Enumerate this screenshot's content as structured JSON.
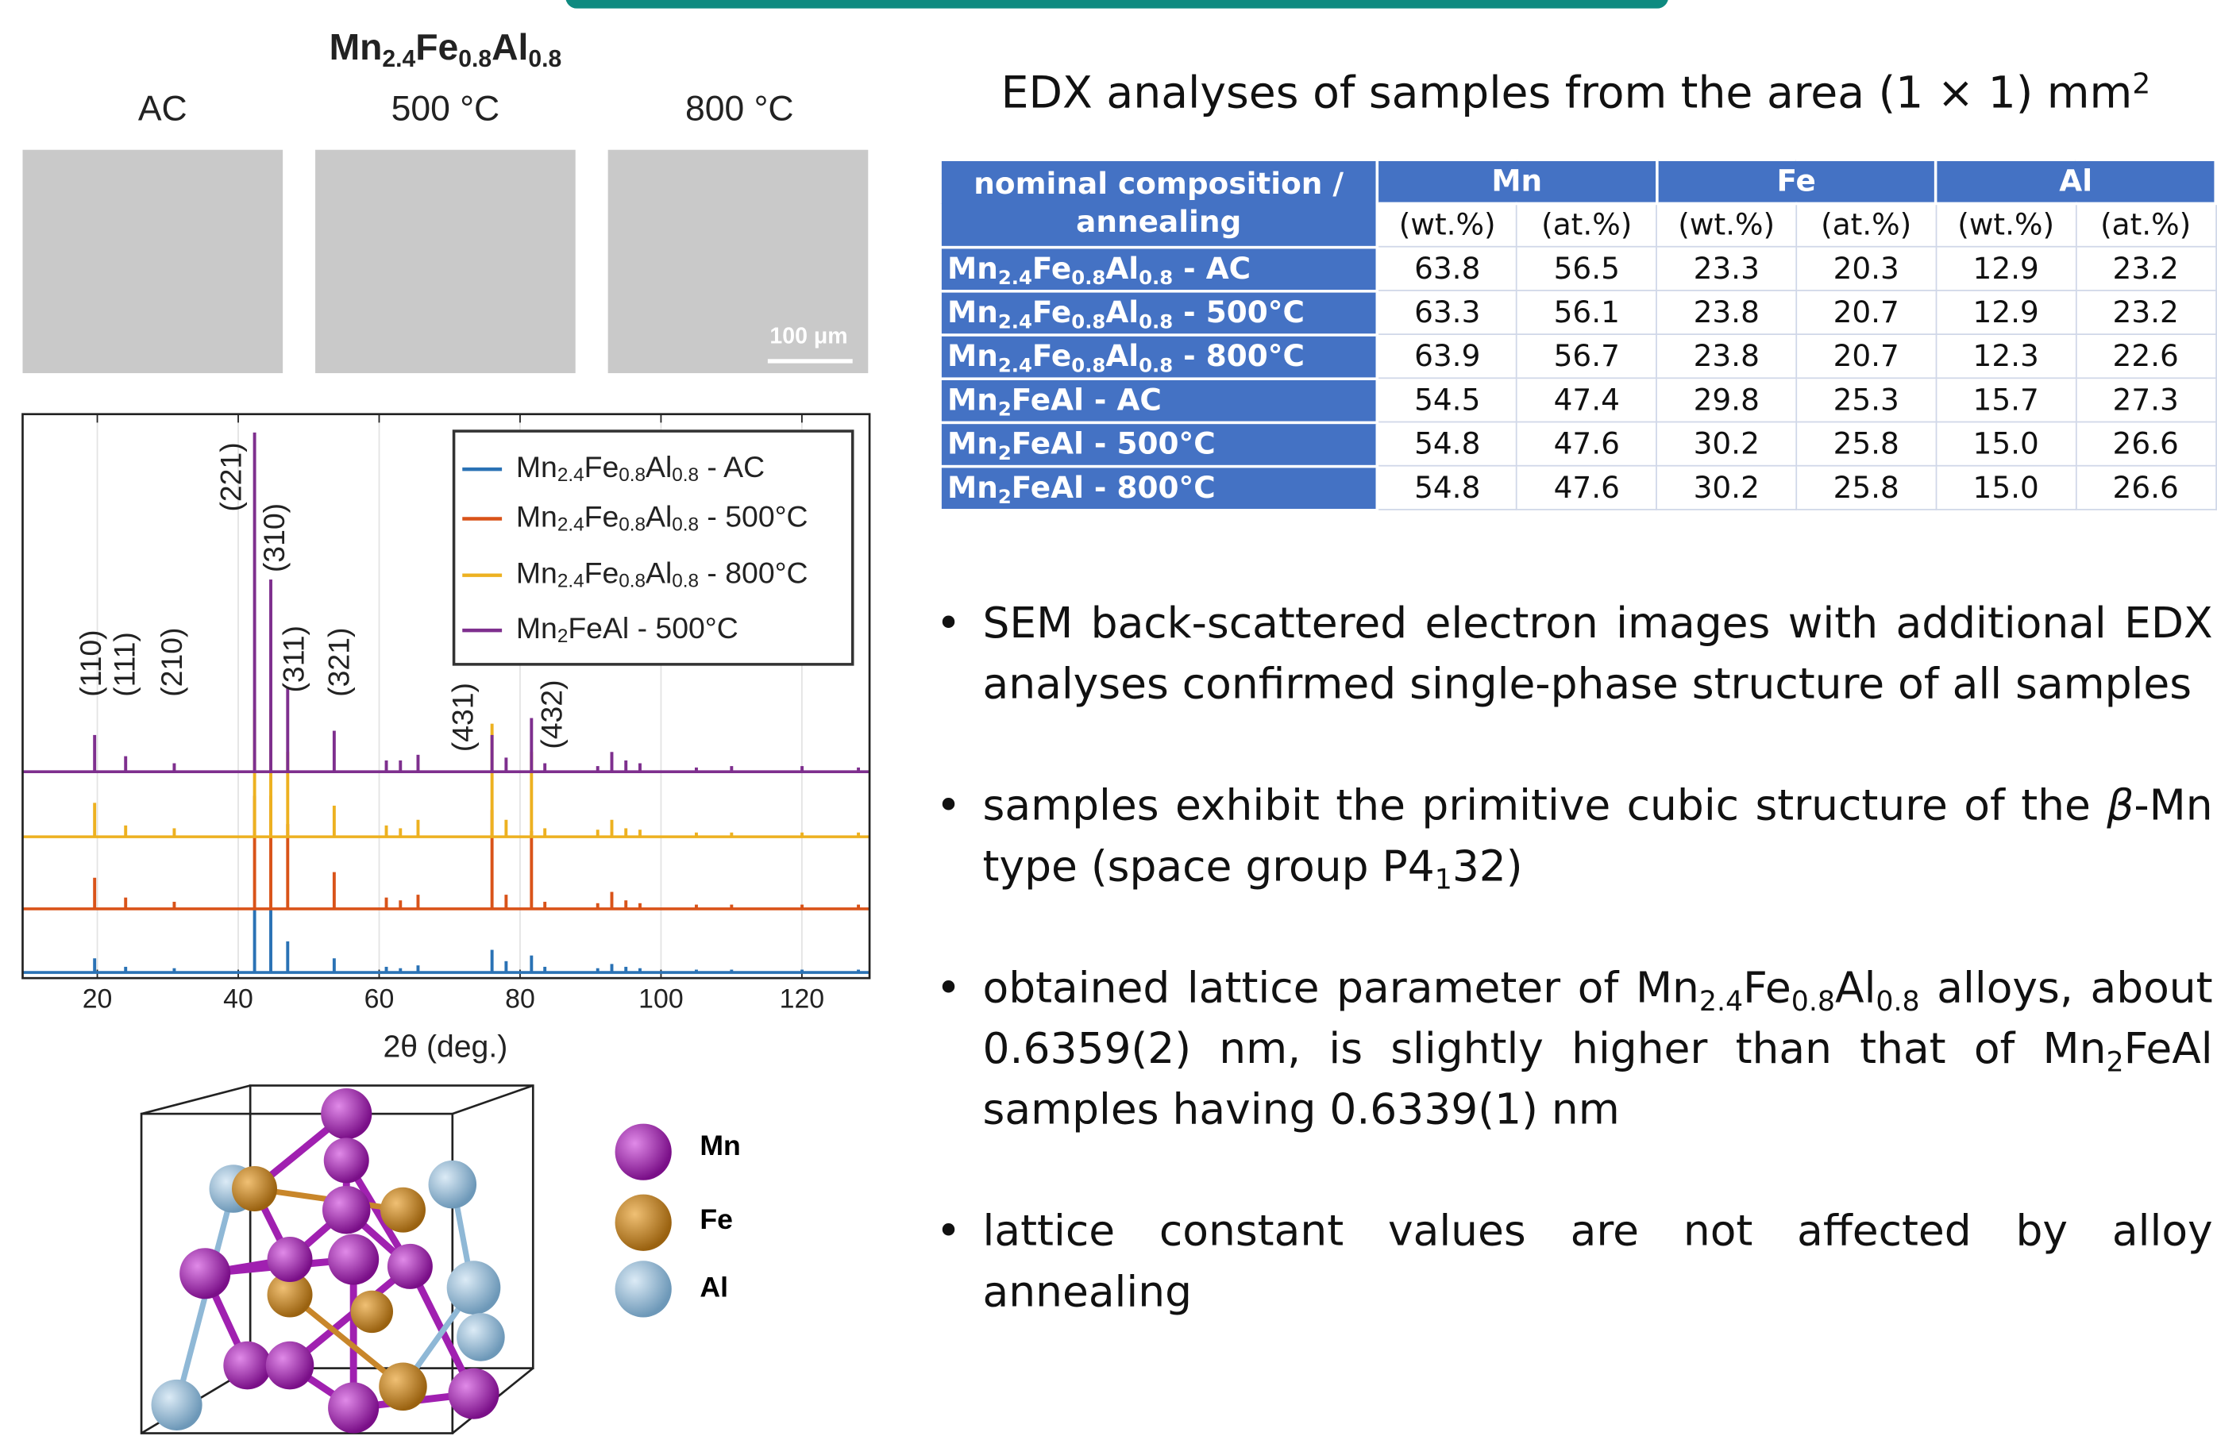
{
  "micrographs": {
    "title": "Mn2.4Fe0.8Al0.8",
    "labels": [
      "AC",
      "500 °C",
      "800 °C"
    ],
    "scale_bar": "100 μm"
  },
  "chart_data": {
    "type": "bar",
    "x": [
      19.6,
      24,
      30.9,
      42.3,
      44.6,
      47,
      53.6,
      61,
      63,
      65.5,
      76,
      78,
      81.6,
      83.5,
      91,
      93,
      95,
      97,
      105,
      110,
      120,
      128
    ],
    "series": [
      {
        "name": "Mn2.4Fe0.8Al0.8 - AC",
        "color": "#2a72b5",
        "values": [
          10,
          4,
          3,
          45,
          45,
          22,
          10,
          4,
          3,
          5,
          16,
          8,
          12,
          4,
          3,
          6,
          4,
          3,
          2,
          2,
          2,
          2
        ]
      },
      {
        "name": "Mn2.4Fe0.8Al0.8 - 500°C",
        "color": "#d95319",
        "values": [
          22,
          8,
          5,
          80,
          80,
          60,
          26,
          8,
          6,
          10,
          70,
          10,
          55,
          5,
          4,
          12,
          6,
          4,
          3,
          3,
          3,
          3
        ]
      },
      {
        "name": "Mn2.4Fe0.8Al0.8 - 800°C",
        "color": "#edb120",
        "values": [
          24,
          8,
          6,
          90,
          90,
          60,
          22,
          8,
          6,
          12,
          80,
          12,
          60,
          6,
          5,
          12,
          6,
          5,
          3,
          3,
          3,
          3
        ]
      },
      {
        "name": "Mn2FeAl - 500°C",
        "color": "#7e2f8e",
        "values": [
          26,
          11,
          6,
          240,
          136,
          60,
          29,
          8,
          8,
          12,
          26,
          10,
          38,
          6,
          4,
          14,
          8,
          6,
          3,
          4,
          4,
          3
        ]
      }
    ],
    "xlim": [
      9.4,
      129.6
    ],
    "xticks": [
      20,
      40,
      60,
      80,
      100,
      120
    ],
    "grid": true,
    "xlabel": "2θ (deg.)",
    "annotations": [
      {
        "text": "(110)",
        "x": 19.6
      },
      {
        "text": "(111)",
        "x": 24
      },
      {
        "text": "(210)",
        "x": 30.9
      },
      {
        "text": "(221)",
        "x": 42.3
      },
      {
        "text": "(310)",
        "x": 44.6
      },
      {
        "text": "(311)",
        "x": 47
      },
      {
        "text": "(321)",
        "x": 53.6
      },
      {
        "text": "(431)",
        "x": 76
      },
      {
        "text": "(432)",
        "x": 81.6
      }
    ]
  },
  "crystal_legend": [
    "Mn",
    "Fe",
    "Al"
  ],
  "edx": {
    "title": [
      {
        "text": "EDX analyses of samples from the area (1 × 1) mm"
      },
      {
        "sup": "2"
      }
    ],
    "table": {
      "header": "nominal composition / annealing",
      "elements": [
        "Mn",
        "Fe",
        "Al"
      ],
      "units": [
        "(wt.%)",
        "(at.%)",
        "(wt.%)",
        "(at.%)",
        "(wt.%)",
        "(at.%)"
      ],
      "rows": [
        [
          "Mn2.4Fe0.8Al0.8 - AC",
          "63.8",
          "56.5",
          "23.3",
          "20.3",
          "12.9",
          "23.2"
        ],
        [
          "Mn2.4Fe0.8Al0.8 - 500°C",
          "63.3",
          "56.1",
          "23.8",
          "20.7",
          "12.9",
          "23.2"
        ],
        [
          "Mn2.4Fe0.8Al0.8 - 800°C",
          "63.9",
          "56.7",
          "23.8",
          "20.7",
          "12.3",
          "22.6"
        ],
        [
          "Mn2FeAl - AC",
          "54.5",
          "47.4",
          "29.8",
          "25.3",
          "15.7",
          "27.3"
        ],
        [
          "Mn2FeAl - 500°C",
          "54.8",
          "47.6",
          "30.2",
          "25.8",
          "15.0",
          "26.6"
        ],
        [
          "Mn2FeAl - 800°C",
          "54.8",
          "47.6",
          "30.2",
          "25.8",
          "15.0",
          "26.6"
        ]
      ]
    }
  },
  "bullets": [
    [
      {
        "text": "SEM back-scattered electron images with additional EDX analyses confirmed single-phase structure of all samples"
      }
    ],
    [
      {
        "text": "samples exhibit the primitive cubic structure of the "
      },
      {
        "em": "β"
      },
      {
        "text": "-Mn type (space group P4"
      },
      {
        "sub": "1"
      },
      {
        "text": "32)"
      }
    ],
    [
      {
        "text": "obtained lattice parameter of Mn"
      },
      {
        "sub": "2.4"
      },
      {
        "text": "Fe"
      },
      {
        "sub": "0.8"
      },
      {
        "text": "Al"
      },
      {
        "sub": "0.8"
      },
      {
        "text": " alloys, about 0.6359(2) nm, is slightly higher than that of Mn"
      },
      {
        "sub": "2"
      },
      {
        "text": "FeAl samples having 0.6339(1) nm"
      }
    ],
    [
      {
        "text": "lattice constant values are not affected by alloy annealing"
      }
    ]
  ]
}
